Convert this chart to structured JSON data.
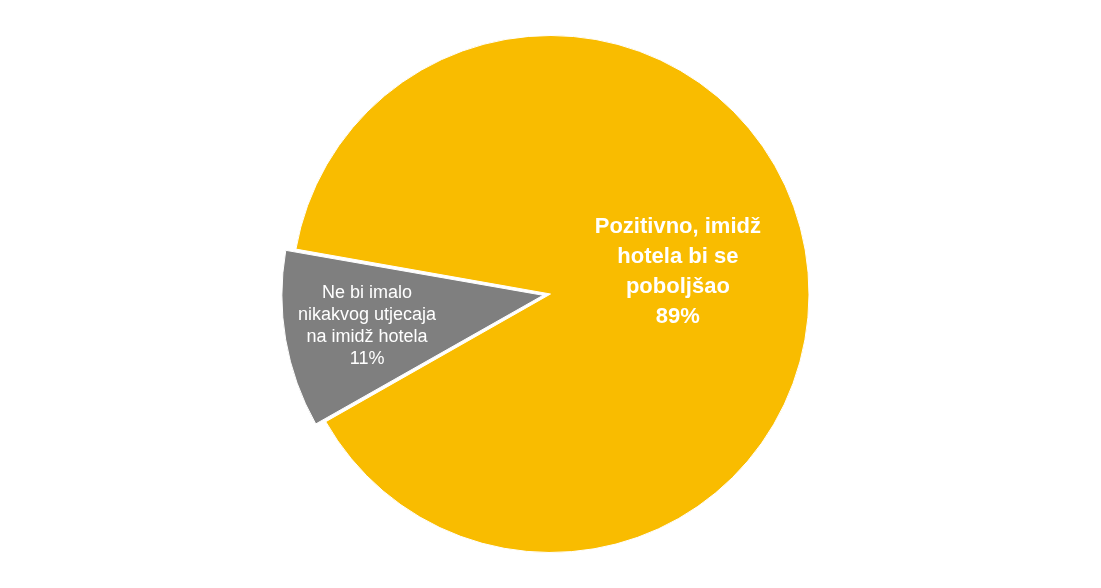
{
  "chart_data": {
    "type": "pie",
    "categories": [
      "Pozitivno, imidž hotela bi se poboljšao",
      "Ne bi imalo nikakvog utjecaja na imidž hotela"
    ],
    "values": [
      89,
      11
    ],
    "colors": [
      "#f9bc00",
      "#7f7f7f"
    ],
    "value_labels": [
      "89%",
      "11%"
    ],
    "legend": false
  }
}
